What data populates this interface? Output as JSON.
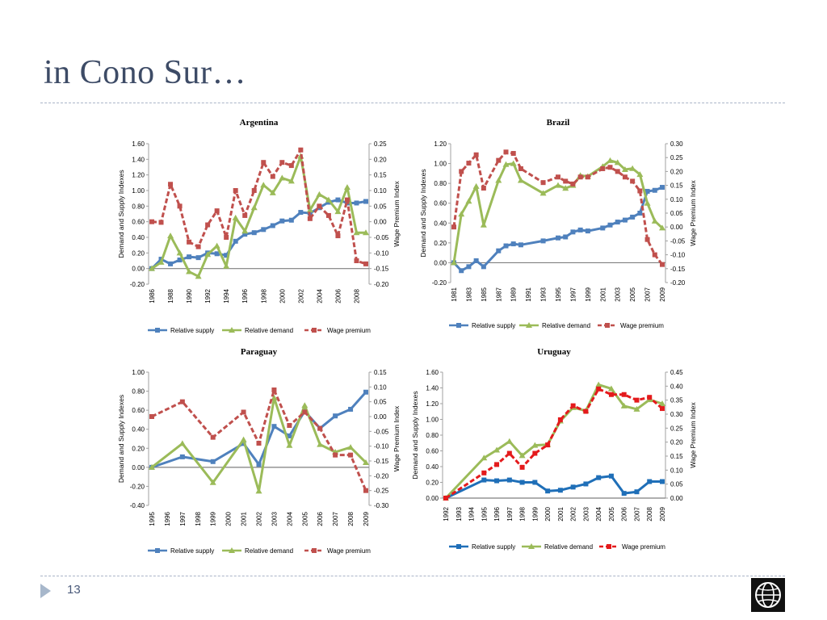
{
  "slide": {
    "title": "in Cono Sur…",
    "page_number": "13"
  },
  "colors": {
    "supply": "#4f81bd",
    "demand": "#9bbb59",
    "wage": "#c0504d",
    "wage_bright": "#e41a1c",
    "supply_dark": "#1f6fb8",
    "zero_line": "#7f7f7f"
  },
  "icons": {
    "nav": "triangle-right-icon",
    "logo": "globe-icon"
  },
  "chart_data": [
    {
      "type": "line",
      "title": "Argentina",
      "ylabel": "Demand and Supply Indexes",
      "y2label": "Wage Premium Index",
      "ylim": [
        -0.2,
        1.6
      ],
      "y_ticks": [
        "-0.20",
        "0.00",
        "0.20",
        "0.40",
        "0.60",
        "0.80",
        "1.00",
        "1.20",
        "1.40",
        "1.60"
      ],
      "y2lim": [
        -0.2,
        0.25
      ],
      "y2_ticks": [
        "-0.20",
        "-0.15",
        "-0.10",
        "-0.05",
        "0.00",
        "0.05",
        "0.10",
        "0.15",
        "0.20",
        "0.25"
      ],
      "x_ticks": [
        "1986",
        "1988",
        "1990",
        "1992",
        "1994",
        "1996",
        "1998",
        "2000",
        "2002",
        "2004",
        "2006",
        "2008"
      ],
      "series": [
        {
          "name": "Relative supply",
          "axis": "left",
          "style": "supply",
          "x": [
            1986,
            1987,
            1988,
            1989,
            1990,
            1991,
            1992,
            1993,
            1994,
            1995,
            1996,
            1997,
            1998,
            1999,
            2000,
            2001,
            2002,
            2003,
            2004,
            2005,
            2006,
            2007,
            2008,
            2009
          ],
          "y": [
            0.0,
            0.12,
            0.06,
            0.11,
            0.15,
            0.14,
            0.2,
            0.19,
            0.17,
            0.35,
            0.44,
            0.46,
            0.5,
            0.55,
            0.61,
            0.62,
            0.72,
            0.71,
            0.78,
            0.85,
            0.88,
            0.84,
            0.84,
            0.86
          ]
        },
        {
          "name": "Relative demand",
          "axis": "left",
          "style": "demand",
          "x": [
            1986,
            1987,
            1988,
            1989,
            1990,
            1991,
            1992,
            1993,
            1994,
            1995,
            1996,
            1997,
            1998,
            1999,
            2000,
            2001,
            2002,
            2003,
            2004,
            2005,
            2006,
            2007,
            2008,
            2009
          ],
          "y": [
            0.0,
            0.08,
            0.42,
            0.2,
            -0.04,
            -0.1,
            0.18,
            0.29,
            0.03,
            0.65,
            0.48,
            0.78,
            1.07,
            0.97,
            1.16,
            1.12,
            1.44,
            0.75,
            0.95,
            0.88,
            0.73,
            1.04,
            0.46,
            0.46
          ]
        },
        {
          "name": "Wage premium",
          "axis": "right",
          "style": "wage",
          "x": [
            1986,
            1987,
            1988,
            1989,
            1990,
            1991,
            1992,
            1993,
            1994,
            1995,
            1996,
            1997,
            1998,
            1999,
            2000,
            2001,
            2002,
            2003,
            2004,
            2005,
            2006,
            2007,
            2008,
            2009
          ],
          "y": [
            0.0,
            -0.002,
            0.12,
            0.05,
            -0.065,
            -0.08,
            -0.01,
            0.035,
            -0.05,
            0.1,
            0.02,
            0.1,
            0.19,
            0.145,
            0.19,
            0.18,
            0.23,
            0.01,
            0.05,
            0.02,
            -0.045,
            0.07,
            -0.125,
            -0.135
          ]
        }
      ]
    },
    {
      "type": "line",
      "title": "Brazil",
      "ylabel": "Demand and Supply Indexes",
      "y2label": "Wage Premium Index",
      "ylim": [
        -0.2,
        1.2
      ],
      "y_ticks": [
        "-0.20",
        "0.00",
        "0.20",
        "0.40",
        "0.60",
        "0.80",
        "1.00",
        "1.20"
      ],
      "y2lim": [
        -0.2,
        0.3
      ],
      "y2_ticks": [
        "-0.20",
        "-0.15",
        "-0.10",
        "-0.05",
        "0.00",
        "0.05",
        "0.10",
        "0.15",
        "0.20",
        "0.25",
        "0.30"
      ],
      "x_ticks": [
        "1981",
        "1983",
        "1985",
        "1987",
        "1989",
        "1991",
        "1993",
        "1995",
        "1997",
        "1999",
        "2001",
        "2003",
        "2005",
        "2007",
        "2009"
      ],
      "series": [
        {
          "name": "Relative supply",
          "axis": "left",
          "style": "supply",
          "x": [
            1981,
            1982,
            1983,
            1984,
            1985,
            1987,
            1988,
            1989,
            1990,
            1993,
            1995,
            1996,
            1997,
            1998,
            1999,
            2001,
            2002,
            2003,
            2004,
            2005,
            2006,
            2007,
            2008,
            2009
          ],
          "y": [
            0.0,
            -0.08,
            -0.04,
            0.02,
            -0.04,
            0.12,
            0.17,
            0.19,
            0.18,
            0.22,
            0.25,
            0.26,
            0.31,
            0.33,
            0.32,
            0.35,
            0.38,
            0.41,
            0.43,
            0.46,
            0.5,
            0.72,
            0.73,
            0.76
          ]
        },
        {
          "name": "Relative demand",
          "axis": "left",
          "style": "demand",
          "x": [
            1981,
            1982,
            1983,
            1984,
            1985,
            1987,
            1988,
            1989,
            1990,
            1993,
            1995,
            1996,
            1997,
            1998,
            1999,
            2001,
            2002,
            2003,
            2004,
            2005,
            2006,
            2007,
            2008,
            2009
          ],
          "y": [
            0.0,
            0.49,
            0.62,
            0.77,
            0.38,
            0.83,
            0.99,
            1.0,
            0.83,
            0.7,
            0.78,
            0.75,
            0.78,
            0.88,
            0.87,
            0.97,
            1.03,
            1.01,
            0.94,
            0.95,
            0.89,
            0.6,
            0.42,
            0.35
          ]
        },
        {
          "name": "Wage premium",
          "axis": "right",
          "style": "wage",
          "x": [
            1981,
            1982,
            1983,
            1984,
            1985,
            1987,
            1988,
            1989,
            1990,
            1993,
            1995,
            1996,
            1997,
            1998,
            1999,
            2001,
            2002,
            2003,
            2004,
            2005,
            2006,
            2007,
            2008,
            2009
          ],
          "y": [
            0.0,
            0.2,
            0.23,
            0.26,
            0.14,
            0.24,
            0.27,
            0.265,
            0.21,
            0.16,
            0.18,
            0.165,
            0.155,
            0.18,
            0.18,
            0.21,
            0.215,
            0.2,
            0.18,
            0.165,
            0.13,
            -0.045,
            -0.1,
            -0.135
          ]
        }
      ]
    },
    {
      "type": "line",
      "title": "Paraguay",
      "ylabel": "Demand and Supply Indexes",
      "y2label": "Wage Premium Index",
      "ylim": [
        -0.4,
        1.0
      ],
      "y_ticks": [
        "-0.40",
        "-0.20",
        "0.00",
        "0.20",
        "0.40",
        "0.60",
        "0.80",
        "1.00"
      ],
      "y2lim": [
        -0.3,
        0.15
      ],
      "y2_ticks": [
        "-0.30",
        "-0.25",
        "-0.20",
        "-0.15",
        "-0.10",
        "-0.05",
        "0.00",
        "0.05",
        "0.10",
        "0.15"
      ],
      "x_ticks": [
        "1995",
        "1996",
        "1997",
        "1998",
        "1999",
        "2000",
        "2001",
        "2002",
        "2003",
        "2004",
        "2005",
        "2006",
        "2007",
        "2008",
        "2009"
      ],
      "series": [
        {
          "name": "Relative supply",
          "axis": "left",
          "style": "supply",
          "x": [
            1995,
            1997,
            1999,
            2001,
            2002,
            2003,
            2004,
            2005,
            2006,
            2007,
            2008,
            2009
          ],
          "y": [
            0.0,
            0.11,
            0.06,
            0.25,
            0.03,
            0.43,
            0.33,
            0.59,
            0.41,
            0.54,
            0.61,
            0.79
          ]
        },
        {
          "name": "Relative demand",
          "axis": "left",
          "style": "demand",
          "x": [
            1995,
            1997,
            1999,
            2001,
            2002,
            2003,
            2004,
            2005,
            2006,
            2007,
            2008,
            2009
          ],
          "y": [
            0.0,
            0.25,
            -0.16,
            0.29,
            -0.25,
            0.73,
            0.23,
            0.65,
            0.24,
            0.16,
            0.21,
            0.05
          ]
        },
        {
          "name": "Wage premium",
          "axis": "right",
          "style": "wage",
          "x": [
            1995,
            1997,
            1999,
            2001,
            2002,
            2003,
            2004,
            2005,
            2006,
            2007,
            2008,
            2009
          ],
          "y": [
            0.0,
            0.05,
            -0.07,
            0.015,
            -0.09,
            0.09,
            -0.03,
            0.015,
            -0.04,
            -0.13,
            -0.13,
            -0.25
          ]
        }
      ]
    },
    {
      "type": "line",
      "title": "Uruguay",
      "ylabel": "Demand and Supply Indexes",
      "y2label": "Wage Premium Index",
      "ylim": [
        0.0,
        1.6
      ],
      "y_ticks": [
        "0.00",
        "0.20",
        "0.40",
        "0.60",
        "0.80",
        "1.00",
        "1.20",
        "1.40",
        "1.60"
      ],
      "y2lim": [
        0.0,
        0.45
      ],
      "y2_ticks": [
        "0.00",
        "0.05",
        "0.10",
        "0.15",
        "0.20",
        "0.25",
        "0.30",
        "0.35",
        "0.40",
        "0.45"
      ],
      "x_ticks": [
        "1992",
        "1993",
        "1994",
        "1995",
        "1996",
        "1997",
        "1998",
        "1999",
        "2000",
        "2001",
        "2002",
        "2003",
        "2004",
        "2005",
        "2006",
        "2007",
        "2008",
        "2009"
      ],
      "series": [
        {
          "name": "Relative supply",
          "axis": "left",
          "style": "supply_dark",
          "x": [
            1992,
            1995,
            1996,
            1997,
            1998,
            1999,
            2000,
            2001,
            2002,
            2003,
            2004,
            2005,
            2006,
            2007,
            2008,
            2009
          ],
          "y": [
            0.0,
            0.23,
            0.22,
            0.23,
            0.2,
            0.2,
            0.09,
            0.1,
            0.14,
            0.18,
            0.26,
            0.28,
            0.06,
            0.08,
            0.21,
            0.21
          ]
        },
        {
          "name": "Relative demand",
          "axis": "left",
          "style": "demand",
          "x": [
            1992,
            1995,
            1996,
            1997,
            1998,
            1999,
            2000,
            2001,
            2002,
            2003,
            2004,
            2005,
            2006,
            2007,
            2008,
            2009
          ],
          "y": [
            0.0,
            0.51,
            0.61,
            0.72,
            0.54,
            0.67,
            0.68,
            0.98,
            1.15,
            1.11,
            1.44,
            1.39,
            1.17,
            1.13,
            1.25,
            1.2
          ]
        },
        {
          "name": "Wage premium",
          "axis": "right",
          "style": "wage_bright",
          "x": [
            1992,
            1995,
            1996,
            1997,
            1998,
            1999,
            2000,
            2001,
            2002,
            2003,
            2004,
            2005,
            2006,
            2007,
            2008,
            2009
          ],
          "y": [
            0.0,
            0.09,
            0.12,
            0.16,
            0.11,
            0.16,
            0.19,
            0.28,
            0.33,
            0.31,
            0.39,
            0.37,
            0.37,
            0.35,
            0.36,
            0.32
          ]
        }
      ]
    }
  ]
}
